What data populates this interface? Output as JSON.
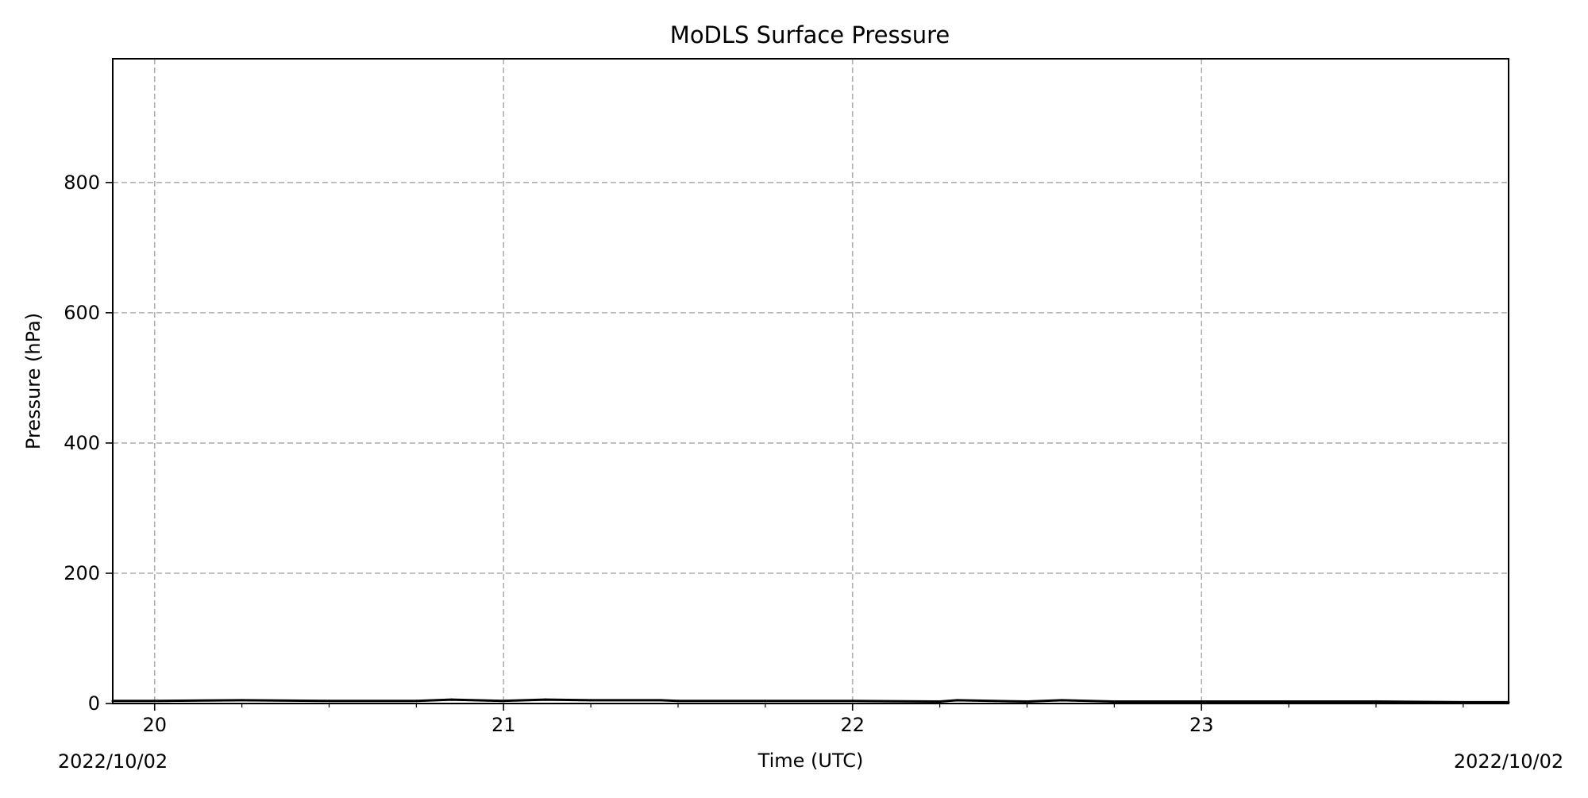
{
  "chart_data": {
    "type": "line",
    "title": "MoDLS Surface Pressure",
    "xlabel": "Time (UTC)",
    "ylabel": "Pressure (hPa)",
    "x_axis": {
      "unit": "hours",
      "xlim": [
        19.88,
        23.88
      ],
      "major_ticks": [
        20,
        21,
        22,
        23
      ],
      "major_tick_labels": [
        "20",
        "21",
        "22",
        "23"
      ],
      "minor_tick_step": 0.25,
      "start_date_label": "2022/10/02",
      "end_date_label": "2022/10/02"
    },
    "y_axis": {
      "ylim": [
        0,
        990
      ],
      "ticks": [
        0,
        200,
        400,
        600,
        800
      ],
      "tick_labels": [
        "0",
        "200",
        "400",
        "600",
        "800"
      ]
    },
    "grid": true,
    "series": [
      {
        "color": "#000000",
        "x": [
          19.88,
          20.0,
          20.25,
          20.5,
          20.75,
          20.85,
          21.0,
          21.12,
          21.25,
          21.45,
          21.5,
          21.75,
          22.0,
          22.25,
          22.3,
          22.5,
          22.6,
          22.75,
          23.0,
          23.25,
          23.5,
          23.75,
          23.88
        ],
        "y": [
          4,
          4,
          5,
          4,
          4,
          6,
          4,
          6,
          5,
          5,
          4,
          4,
          4,
          3,
          5,
          3,
          5,
          3,
          3,
          3,
          3,
          2,
          2
        ]
      }
    ]
  }
}
